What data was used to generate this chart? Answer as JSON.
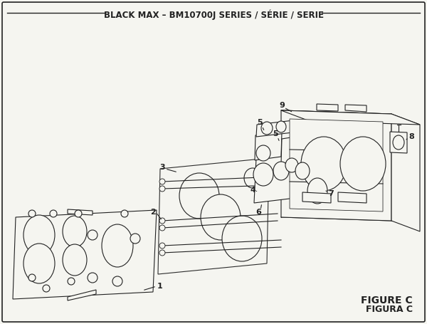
{
  "title": "BLACK MAX – BM10700J SERIES / SÉRIE / SERIE",
  "figure_label": "FIGURE C",
  "figura_label": "FIGURA C",
  "bg_color": "#f5f5f0",
  "line_color": "#222222",
  "title_fontsize": 8.5,
  "label_fontsize": 8,
  "fig_label_fontsize": 10
}
